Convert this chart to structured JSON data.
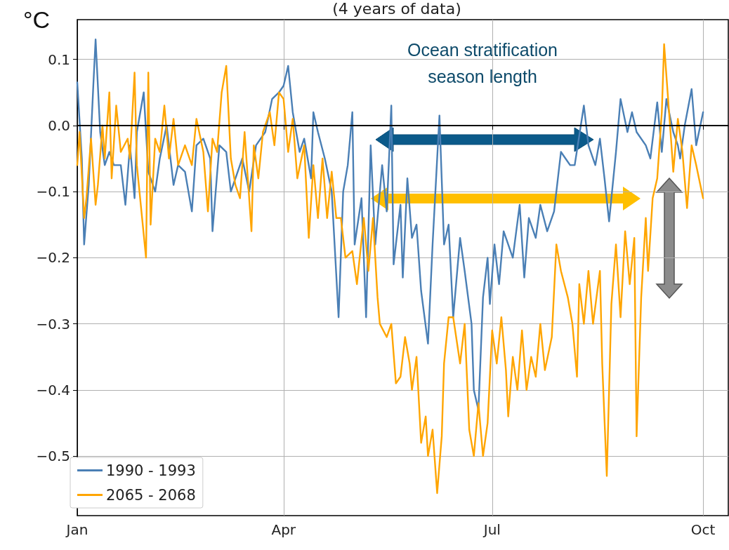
{
  "chart_data": {
    "type": "line",
    "title": "(4 years of data)",
    "ylabel": "°C",
    "annotations": [
      "Ocean stratification season length"
    ],
    "xlim": [
      "--01-01",
      "--10-12"
    ],
    "xticks": [
      {
        "value": "--01-01",
        "label": "Jan"
      },
      {
        "value": "--04-01",
        "label": "Apr"
      },
      {
        "value": "--07-01",
        "label": "Jul"
      },
      {
        "value": "--10-01",
        "label": "Oct"
      }
    ],
    "ylim": [
      -0.59,
      0.16
    ],
    "yticks": [
      {
        "value": 0.1,
        "label": "0.1"
      },
      {
        "value": 0,
        "label": "0.0"
      },
      {
        "value": -0.1,
        "label": "−0.1"
      },
      {
        "value": -0.2,
        "label": "−0.2"
      },
      {
        "value": -0.3,
        "label": "−0.3"
      },
      {
        "value": -0.4,
        "label": "−0.4"
      },
      {
        "value": -0.5,
        "label": "−0.5"
      }
    ],
    "grid": true,
    "legend": "bottom left",
    "marker": "none",
    "line_style": "solid",
    "ref_lines": [
      {
        "axis": "y",
        "value": 0,
        "color": "#000000"
      }
    ],
    "series": [
      {
        "name": "1990 - 1993",
        "color": "#4a7fb5",
        "x": [
          "--01-01",
          "--01-03",
          "--01-04",
          "--01-06",
          "--01-08",
          "--01-09",
          "--01-11",
          "--01-13",
          "--01-15",
          "--01-17",
          "--01-20",
          "--01-22",
          "--01-24",
          "--01-26",
          "--01-27",
          "--01-30",
          "--02-01",
          "--02-04",
          "--02-06",
          "--02-09",
          "--02-10",
          "--02-12",
          "--02-14",
          "--02-17",
          "--02-20",
          "--02-22",
          "--02-25",
          "--02-28",
          "--03-01",
          "--03-04",
          "--03-07",
          "--03-09",
          "--03-14",
          "--03-17",
          "--03-20",
          "--03-24",
          "--03-27",
          "--03-30",
          "--04-01",
          "--04-03",
          "--04-05",
          "--04-08",
          "--04-10",
          "--04-13",
          "--04-14",
          "--04-16",
          "--04-19",
          "--04-22",
          "--04-25",
          "--04-27",
          "--04-29",
          "--05-01",
          "--05-02",
          "--05-05",
          "--05-07",
          "--05-09",
          "--05-11",
          "--05-14",
          "--05-16",
          "--05-18",
          "--05-19",
          "--05-22",
          "--05-23",
          "--05-25",
          "--05-27",
          "--05-29",
          "--05-31",
          "--06-03",
          "--06-05",
          "--06-08",
          "--06-10",
          "--06-12",
          "--06-14",
          "--06-17",
          "--06-19",
          "--06-22",
          "--06-23",
          "--06-25",
          "--06-27",
          "--06-29",
          "--06-30",
          "--07-02",
          "--07-04",
          "--07-06",
          "--07-10",
          "--07-13",
          "--07-15",
          "--07-17",
          "--07-20",
          "--07-22",
          "--07-25",
          "--07-28",
          "--07-31",
          "--08-02",
          "--08-04",
          "--08-06",
          "--08-10",
          "--08-12",
          "--08-15",
          "--08-17",
          "--08-19",
          "--08-21",
          "--08-24",
          "--08-26",
          "--08-29",
          "--08-31",
          "--09-02",
          "--09-06",
          "--09-08",
          "--09-11",
          "--09-13",
          "--09-15",
          "--09-18",
          "--09-20",
          "--09-21",
          "--09-23",
          "--09-26",
          "--09-28",
          "--10-01"
        ],
        "values": [
          0.065,
          -0.05,
          -0.18,
          -0.09,
          0.06,
          0.13,
          -0.01,
          -0.06,
          -0.04,
          -0.06,
          -0.06,
          -0.12,
          -0.03,
          -0.11,
          -0.01,
          0.05,
          -0.07,
          -0.1,
          -0.05,
          0.0,
          -0.03,
          -0.09,
          -0.06,
          -0.07,
          -0.13,
          -0.03,
          -0.02,
          -0.05,
          -0.16,
          -0.03,
          -0.04,
          -0.1,
          -0.05,
          -0.1,
          -0.03,
          -0.01,
          0.04,
          0.05,
          0.06,
          0.09,
          0.02,
          -0.04,
          -0.02,
          -0.08,
          0.02,
          -0.01,
          -0.05,
          -0.1,
          -0.29,
          -0.1,
          -0.06,
          0.02,
          -0.18,
          -0.11,
          -0.29,
          -0.03,
          -0.18,
          -0.06,
          -0.13,
          0.03,
          -0.21,
          -0.12,
          -0.23,
          -0.08,
          -0.17,
          -0.15,
          -0.25,
          -0.33,
          -0.18,
          0.015,
          -0.18,
          -0.15,
          -0.29,
          -0.17,
          -0.22,
          -0.3,
          -0.4,
          -0.43,
          -0.26,
          -0.2,
          -0.27,
          -0.18,
          -0.24,
          -0.16,
          -0.2,
          -0.12,
          -0.23,
          -0.14,
          -0.17,
          -0.12,
          -0.16,
          -0.13,
          -0.04,
          -0.05,
          -0.06,
          -0.06,
          0.03,
          -0.03,
          -0.06,
          -0.02,
          -0.08,
          -0.145,
          -0.04,
          0.04,
          -0.01,
          0.02,
          -0.01,
          -0.03,
          -0.05,
          0.035,
          -0.04,
          0.04,
          -0.01,
          -0.03,
          -0.05,
          0.0,
          0.055,
          -0.03,
          0.02
        ]
      },
      {
        "name": "2065 - 2068",
        "color": "#ffa500",
        "x": [
          "--01-01",
          "--01-02",
          "--01-04",
          "--01-05",
          "--01-07",
          "--01-09",
          "--01-10",
          "--01-12",
          "--01-13",
          "--01-15",
          "--01-16",
          "--01-18",
          "--01-20",
          "--01-23",
          "--01-24",
          "--01-26",
          "--01-27",
          "--01-31",
          "--02-01",
          "--02-02",
          "--02-04",
          "--02-06",
          "--02-08",
          "--02-10",
          "--02-12",
          "--02-14",
          "--02-17",
          "--02-20",
          "--02-22",
          "--02-25",
          "--02-27",
          "--03-01",
          "--03-03",
          "--03-05",
          "--03-07",
          "--03-09",
          "--03-11",
          "--03-13",
          "--03-15",
          "--03-18",
          "--03-19",
          "--03-21",
          "--03-23",
          "--03-26",
          "--03-28",
          "--03-30",
          "--04-01",
          "--04-03",
          "--04-05",
          "--04-07",
          "--04-10",
          "--04-12",
          "--04-14",
          "--04-16",
          "--04-18",
          "--04-20",
          "--04-22",
          "--04-24",
          "--04-26",
          "--04-28",
          "--05-01",
          "--05-03",
          "--05-06",
          "--05-08",
          "--05-10",
          "--05-12",
          "--05-13",
          "--05-16",
          "--05-18",
          "--05-20",
          "--05-22",
          "--05-24",
          "--05-26",
          "--05-27",
          "--05-29",
          "--05-31",
          "--06-02",
          "--06-03",
          "--06-05",
          "--06-07",
          "--06-09",
          "--06-10",
          "--06-12",
          "--06-14",
          "--06-17",
          "--06-19",
          "--06-21",
          "--06-23",
          "--06-25",
          "--06-27",
          "--06-29",
          "--07-01",
          "--07-03",
          "--07-05",
          "--07-07",
          "--07-08",
          "--07-10",
          "--07-12",
          "--07-14",
          "--07-16",
          "--07-18",
          "--07-20",
          "--07-22",
          "--07-24",
          "--07-27",
          "--07-29",
          "--07-31",
          "--08-03",
          "--08-05",
          "--08-07",
          "--08-08",
          "--08-10",
          "--08-12",
          "--08-14",
          "--08-17",
          "--08-18",
          "--08-20",
          "--08-22",
          "--08-24",
          "--08-26",
          "--08-28",
          "--08-30",
          "--09-01",
          "--09-02",
          "--09-04",
          "--09-06",
          "--09-07",
          "--09-09",
          "--09-11",
          "--09-13",
          "--09-14",
          "--09-17",
          "--09-18",
          "--09-20",
          "--09-22",
          "--09-24",
          "--09-26",
          "--09-28",
          "--10-01"
        ],
        "values": [
          -0.06,
          -0.01,
          -0.14,
          -0.11,
          -0.02,
          -0.12,
          -0.09,
          0.0,
          -0.05,
          0.05,
          -0.08,
          0.03,
          -0.04,
          -0.02,
          -0.05,
          0.08,
          -0.06,
          -0.2,
          0.08,
          -0.15,
          -0.02,
          -0.04,
          0.03,
          -0.05,
          0.01,
          -0.06,
          -0.03,
          -0.06,
          0.01,
          -0.04,
          -0.13,
          -0.02,
          -0.04,
          0.05,
          0.09,
          -0.05,
          -0.09,
          -0.11,
          -0.01,
          -0.16,
          -0.03,
          -0.08,
          -0.01,
          0.02,
          -0.03,
          0.05,
          0.04,
          -0.04,
          0.01,
          -0.08,
          -0.03,
          -0.17,
          -0.06,
          -0.14,
          -0.05,
          -0.14,
          -0.07,
          -0.14,
          -0.14,
          -0.2,
          -0.19,
          -0.24,
          -0.14,
          -0.22,
          -0.14,
          -0.26,
          -0.3,
          -0.32,
          -0.3,
          -0.39,
          -0.38,
          -0.32,
          -0.36,
          -0.4,
          -0.35,
          -0.48,
          -0.44,
          -0.5,
          -0.46,
          -0.556,
          -0.47,
          -0.36,
          -0.29,
          -0.29,
          -0.36,
          -0.3,
          -0.46,
          -0.5,
          -0.42,
          -0.5,
          -0.45,
          -0.31,
          -0.36,
          -0.29,
          -0.37,
          -0.44,
          -0.35,
          -0.4,
          -0.31,
          -0.4,
          -0.35,
          -0.38,
          -0.3,
          -0.37,
          -0.32,
          -0.18,
          -0.22,
          -0.26,
          -0.3,
          -0.38,
          -0.24,
          -0.3,
          -0.22,
          -0.3,
          -0.22,
          -0.36,
          -0.53,
          -0.27,
          -0.18,
          -0.29,
          -0.16,
          -0.24,
          -0.17,
          -0.47,
          -0.26,
          -0.14,
          -0.22,
          -0.11,
          -0.08,
          0.02,
          0.123,
          -0.02,
          -0.07,
          0.01,
          -0.04,
          -0.125,
          -0.03,
          -0.06,
          -0.11
        ]
      }
    ]
  }
}
